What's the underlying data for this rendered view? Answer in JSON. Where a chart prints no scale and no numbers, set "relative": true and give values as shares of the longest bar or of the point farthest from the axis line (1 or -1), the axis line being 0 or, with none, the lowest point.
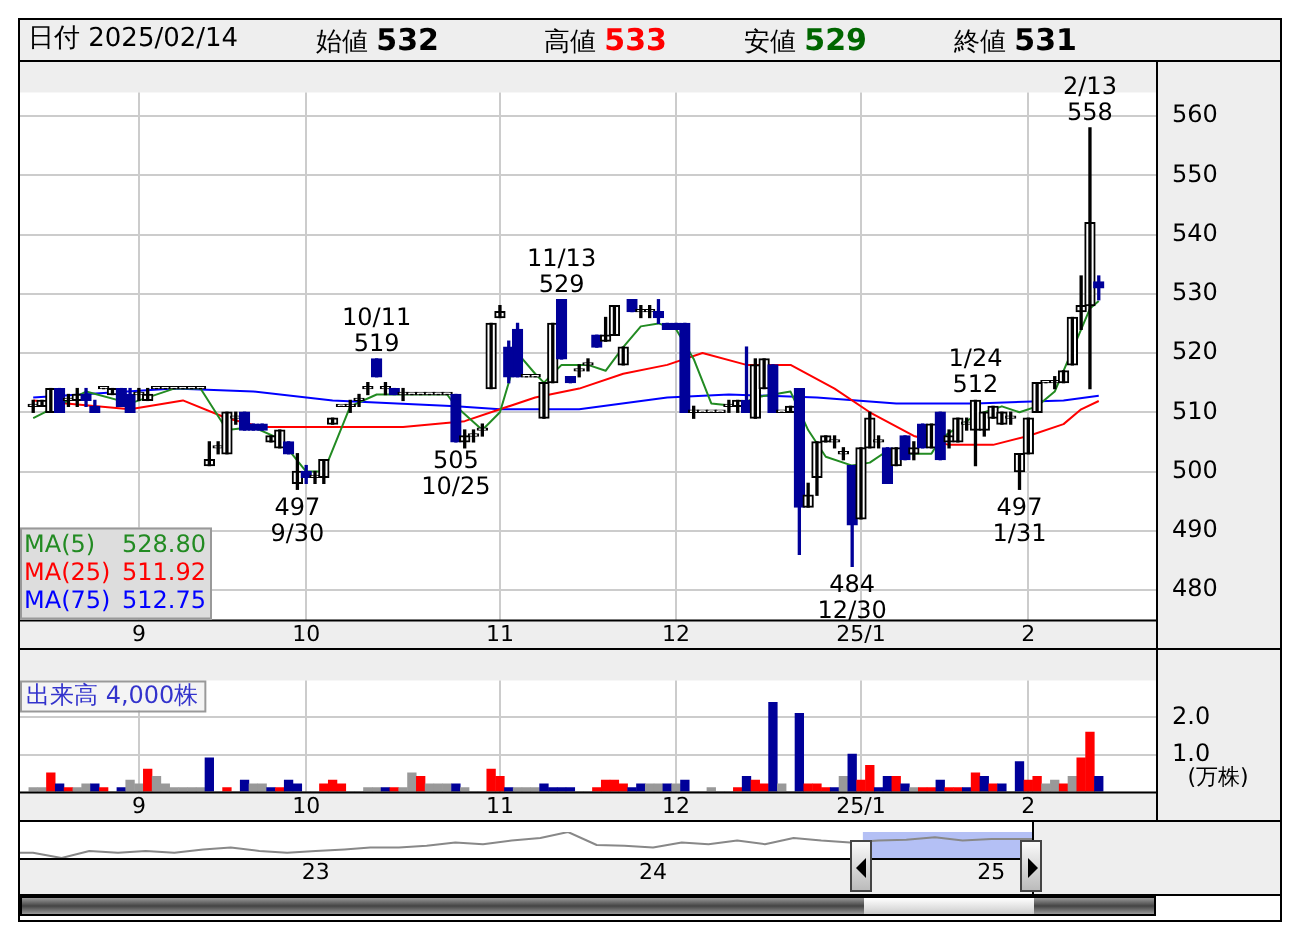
{
  "chart_data": [
    {
      "type": "candlestick",
      "title": "日付 2025/02/14",
      "grid": true,
      "legend": "bottom left",
      "marker": "none",
      "annotations": [
        "始値 532",
        "高値 533",
        "安値 529",
        "終値 531",
        "528.80",
        "511.92",
        "512.75"
      ],
      "categories": [
        null,
        null,
        null,
        null,
        null,
        null,
        null,
        null,
        null,
        null,
        null,
        null,
        "9",
        null,
        null,
        null,
        null,
        null,
        null,
        null,
        null,
        null,
        null,
        null,
        null,
        null,
        null,
        null,
        null,
        null,
        null,
        "10",
        null,
        null,
        null,
        null,
        null,
        null,
        null,
        null,
        null,
        null,
        null,
        null,
        null,
        null,
        null,
        null,
        null,
        null,
        null,
        null,
        null,
        "11",
        null,
        null,
        null,
        null,
        null,
        null,
        null,
        null,
        null,
        null,
        null,
        null,
        null,
        null,
        null,
        null,
        null,
        null,
        null,
        "12",
        null,
        null,
        null,
        null,
        null,
        null,
        null,
        null,
        null,
        null,
        null,
        null,
        null,
        null,
        null,
        null,
        null,
        null,
        null,
        null,
        "25/1",
        null,
        null,
        null,
        null,
        null,
        null,
        null,
        null,
        null,
        null,
        null,
        null,
        null,
        null,
        null,
        null,
        null,
        null,
        "2",
        null,
        null,
        null,
        null,
        null,
        null,
        null,
        null
      ],
      "ylim": [
        475,
        564
      ],
      "yticks": [
        480,
        490,
        500,
        510,
        520,
        530,
        540,
        550,
        560
      ],
      "ohlc": [
        [
          511,
          512,
          510,
          511
        ],
        [
          511,
          512,
          511,
          512
        ],
        [
          510,
          514,
          510,
          514
        ],
        [
          514,
          514,
          510,
          510
        ],
        [
          512,
          513,
          511,
          512
        ],
        [
          512,
          514,
          511,
          513
        ],
        [
          513,
          514,
          511,
          512
        ],
        [
          511,
          512,
          510,
          510
        ],
        [
          514,
          514,
          514,
          514
        ],
        [
          513,
          514,
          513,
          514
        ],
        [
          514,
          514,
          511,
          511
        ],
        [
          513,
          514,
          510,
          510
        ],
        [
          513,
          514,
          512,
          513
        ],
        [
          512,
          514,
          512,
          513
        ],
        [
          514,
          514,
          514,
          514
        ],
        [
          514,
          514,
          514,
          514
        ],
        [
          514,
          514,
          514,
          514
        ],
        [
          514,
          514,
          514,
          514
        ],
        [
          514,
          514,
          514,
          514
        ],
        [
          514,
          514,
          514,
          514
        ],
        [
          501,
          505,
          501,
          502
        ],
        [
          504,
          505,
          503,
          504
        ],
        [
          503,
          510,
          503,
          510
        ],
        [
          509,
          510,
          508,
          509
        ],
        [
          510,
          510,
          507,
          507
        ],
        [
          508,
          508,
          507,
          507
        ],
        [
          508,
          508,
          507,
          507
        ],
        [
          505,
          506,
          505,
          506
        ],
        [
          504,
          507,
          504,
          507
        ],
        [
          505,
          505,
          503,
          503
        ],
        [
          498,
          503,
          497,
          500
        ],
        [
          500,
          501,
          498,
          499
        ],
        [
          499,
          500,
          498,
          499
        ],
        [
          499,
          502,
          498,
          502
        ],
        [
          508,
          509,
          508,
          509
        ],
        [
          511,
          511,
          511,
          511
        ],
        [
          511,
          512,
          510,
          511
        ],
        [
          512,
          513,
          511,
          512
        ],
        [
          514,
          515,
          513,
          514
        ],
        [
          519,
          519,
          516,
          516
        ],
        [
          514,
          515,
          513,
          514
        ],
        [
          514,
          514,
          513,
          513
        ],
        [
          513,
          514,
          512,
          513
        ],
        [
          513,
          513,
          513,
          513
        ],
        [
          513,
          513,
          513,
          513
        ],
        [
          513,
          513,
          513,
          513
        ],
        [
          513,
          513,
          513,
          513
        ],
        [
          513,
          513,
          513,
          513
        ],
        [
          513,
          513,
          505,
          505
        ],
        [
          505,
          507,
          504,
          506
        ],
        [
          506,
          507,
          505,
          506
        ],
        [
          507,
          508,
          506,
          507
        ],
        [
          514,
          525,
          514,
          525
        ],
        [
          526,
          528,
          526,
          527
        ],
        [
          521,
          522,
          515,
          516
        ],
        [
          524,
          525,
          516,
          516
        ],
        [
          516,
          516,
          516,
          516
        ],
        [
          516,
          516,
          516,
          516
        ],
        [
          509,
          515,
          509,
          515
        ],
        [
          515,
          525,
          515,
          525
        ],
        [
          529,
          529,
          519,
          519
        ],
        [
          516,
          516,
          515,
          515
        ],
        [
          517,
          518,
          516,
          517
        ],
        [
          518,
          519,
          517,
          518
        ],
        [
          523,
          523,
          521,
          521
        ],
        [
          522,
          526,
          522,
          523
        ],
        [
          523,
          528,
          523,
          528
        ],
        [
          518,
          521,
          518,
          521
        ],
        [
          529,
          529,
          527,
          527
        ],
        [
          527,
          528,
          526,
          527
        ],
        [
          527,
          528,
          526,
          527
        ],
        [
          527,
          529,
          525,
          526
        ],
        [
          525,
          525,
          524,
          524
        ],
        [
          525,
          525,
          524,
          524
        ],
        [
          525,
          525,
          510,
          510
        ],
        [
          510,
          511,
          509,
          510
        ],
        [
          510,
          510,
          510,
          510
        ],
        [
          510,
          510,
          510,
          510
        ],
        [
          510,
          510,
          510,
          510
        ],
        [
          511,
          512,
          510,
          511
        ],
        [
          511,
          512,
          510,
          512
        ],
        [
          512,
          521,
          510,
          510
        ],
        [
          509,
          519,
          509,
          518
        ],
        [
          514,
          519,
          514,
          519
        ],
        [
          518,
          518,
          510,
          510
        ],
        [
          510,
          510,
          510,
          510
        ],
        [
          510,
          511,
          510,
          511
        ],
        [
          514,
          514,
          486,
          494
        ],
        [
          494,
          498,
          494,
          496
        ],
        [
          499,
          505,
          496,
          505
        ],
        [
          505,
          506,
          505,
          506
        ],
        [
          505,
          506,
          504,
          505
        ],
        [
          503,
          504,
          502,
          503
        ],
        [
          501,
          501,
          484,
          491
        ],
        [
          492,
          504,
          492,
          504
        ],
        [
          504,
          510,
          504,
          509
        ],
        [
          505,
          506,
          504,
          505
        ],
        [
          504,
          504,
          498,
          498
        ],
        [
          501,
          504,
          501,
          504
        ],
        [
          506,
          506,
          502,
          502
        ],
        [
          503,
          505,
          502,
          504
        ],
        [
          508,
          508,
          504,
          504
        ],
        [
          504,
          508,
          504,
          508
        ],
        [
          510,
          510,
          502,
          502
        ],
        [
          505,
          507,
          504,
          506
        ],
        [
          505,
          509,
          505,
          509
        ],
        [
          508,
          509,
          507,
          508
        ],
        [
          507,
          512,
          501,
          512
        ],
        [
          507,
          510,
          506,
          510
        ],
        [
          509,
          511,
          509,
          511
        ],
        [
          508,
          510,
          508,
          510
        ],
        [
          509,
          510,
          508,
          509
        ],
        [
          500,
          503,
          497,
          503
        ],
        [
          503,
          509,
          503,
          509
        ],
        [
          510,
          515,
          510,
          515
        ],
        [
          515,
          515,
          515,
          515
        ],
        [
          515,
          516,
          514,
          515
        ],
        [
          515,
          517,
          515,
          517
        ],
        [
          518,
          526,
          518,
          526
        ],
        [
          527,
          533,
          524,
          528
        ],
        [
          528,
          558,
          514,
          542
        ],
        [
          532,
          533,
          529,
          531
        ]
      ],
      "value_labels": [
        null,
        null,
        null,
        null,
        null,
        null,
        null,
        null,
        null,
        null,
        null,
        null,
        null,
        null,
        null,
        null,
        null,
        null,
        null,
        null,
        null,
        null,
        null,
        null,
        null,
        null,
        null,
        null,
        null,
        null,
        "497\n9/30",
        null,
        null,
        null,
        null,
        null,
        null,
        null,
        null,
        "10/11\n519",
        null,
        null,
        null,
        null,
        null,
        null,
        null,
        null,
        "505\n10/25",
        null,
        null,
        null,
        null,
        null,
        null,
        null,
        null,
        null,
        null,
        null,
        "11/13\n529",
        null,
        null,
        null,
        null,
        null,
        null,
        null,
        null,
        null,
        null,
        null,
        null,
        null,
        null,
        null,
        null,
        null,
        null,
        null,
        null,
        null,
        null,
        null,
        null,
        null,
        null,
        null,
        null,
        null,
        null,
        null,
        null,
        "484\n12/30",
        null,
        null,
        null,
        null,
        null,
        null,
        null,
        null,
        null,
        null,
        null,
        null,
        null,
        "1/24\n512",
        null,
        null,
        null,
        null,
        "497\n1/31",
        null,
        null,
        null,
        null,
        null,
        null,
        null,
        "2/13\n558",
        null
      ],
      "series": [
        {
          "name": "MA(5)",
          "type": "line",
          "color": "#228b22",
          "values": [
            509,
            null,
            null,
            null,
            null,
            null,
            513.5,
            null,
            null,
            null,
            null,
            511.5,
            null,
            null,
            null,
            null,
            514,
            null,
            null,
            514,
            null,
            null,
            507,
            null,
            null,
            507.5,
            null,
            null,
            505.5,
            null,
            null,
            500,
            null,
            500,
            null,
            null,
            511,
            null,
            null,
            513,
            null,
            null,
            null,
            null,
            null,
            null,
            null,
            513,
            511,
            null,
            null,
            507,
            null,
            510,
            null,
            520,
            null,
            516.5,
            515,
            null,
            518,
            null,
            null,
            518,
            null,
            517,
            null,
            521,
            null,
            524.5,
            null,
            525,
            null,
            524,
            null,
            519,
            null,
            511.5,
            null,
            null,
            511,
            null,
            512.5,
            null,
            513,
            null,
            513.5,
            null,
            507,
            null,
            502.5,
            null,
            null,
            501,
            null,
            501.5,
            null,
            503.5,
            null,
            503,
            null,
            null,
            503,
            505.5,
            null,
            null,
            null,
            509.5,
            null,
            null,
            511,
            null,
            510,
            null,
            511,
            null,
            513.5,
            null,
            null,
            null,
            527.5,
            528.8
          ]
        },
        {
          "name": "MA(25)",
          "type": "line",
          "color": "#ff0000",
          "values": [
            512,
            null,
            null,
            null,
            null,
            null,
            null,
            null,
            null,
            null,
            null,
            510.5,
            null,
            null,
            null,
            null,
            null,
            512,
            null,
            null,
            null,
            null,
            509,
            null,
            null,
            null,
            507.5,
            null,
            null,
            null,
            null,
            null,
            null,
            507.5,
            null,
            null,
            null,
            null,
            null,
            null,
            null,
            null,
            507.5,
            null,
            null,
            null,
            null,
            null,
            null,
            508.5,
            null,
            null,
            null,
            510.5,
            null,
            null,
            null,
            512.5,
            null,
            null,
            null,
            null,
            514,
            null,
            null,
            null,
            null,
            516.5,
            null,
            null,
            null,
            null,
            518,
            null,
            null,
            null,
            520,
            null,
            null,
            null,
            null,
            518,
            null,
            null,
            null,
            null,
            518,
            null,
            null,
            null,
            null,
            514,
            null,
            null,
            null,
            510,
            null,
            null,
            null,
            null,
            506,
            null,
            null,
            null,
            504.5,
            null,
            null,
            null,
            null,
            504.5,
            null,
            null,
            null,
            506,
            null,
            null,
            null,
            508,
            null,
            510.5,
            null,
            511.9
          ]
        },
        {
          "name": "MA(75)",
          "type": "line",
          "color": "#0000ff",
          "values": [
            512.5,
            null,
            null,
            null,
            null,
            null,
            null,
            null,
            null,
            null,
            null,
            null,
            null,
            null,
            null,
            null,
            514,
            null,
            null,
            null,
            null,
            null,
            null,
            null,
            null,
            513.5,
            null,
            null,
            null,
            null,
            null,
            null,
            null,
            null,
            512,
            null,
            null,
            null,
            null,
            null,
            null,
            null,
            null,
            null,
            null,
            null,
            null,
            null,
            511,
            null,
            null,
            null,
            null,
            510.5,
            null,
            null,
            null,
            null,
            null,
            null,
            null,
            null,
            510.5,
            null,
            null,
            null,
            null,
            null,
            null,
            null,
            null,
            null,
            512.5,
            null,
            null,
            null,
            null,
            null,
            null,
            513,
            null,
            null,
            null,
            null,
            null,
            null,
            null,
            null,
            null,
            512.5,
            null,
            null,
            null,
            null,
            null,
            null,
            null,
            null,
            511.5,
            null,
            null,
            null,
            null,
            null,
            null,
            null,
            null,
            511.5,
            null,
            null,
            null,
            null,
            null,
            null,
            null,
            null,
            null,
            512,
            null,
            null,
            null,
            512.8
          ]
        }
      ]
    },
    {
      "type": "bar",
      "title": "出来高 4,000株",
      "ylabel": "(万株)",
      "grid": true,
      "categories": [
        null,
        null,
        null,
        null,
        null,
        null,
        null,
        null,
        null,
        null,
        null,
        null,
        "9",
        null,
        null,
        null,
        null,
        null,
        null,
        null,
        null,
        null,
        null,
        null,
        null,
        null,
        null,
        null,
        null,
        null,
        null,
        "10",
        null,
        null,
        null,
        null,
        null,
        null,
        null,
        null,
        null,
        null,
        null,
        null,
        null,
        null,
        null,
        null,
        null,
        null,
        null,
        null,
        null,
        "11",
        null,
        null,
        null,
        null,
        null,
        null,
        null,
        null,
        null,
        null,
        null,
        null,
        null,
        null,
        null,
        null,
        null,
        null,
        null,
        "12",
        null,
        null,
        null,
        null,
        null,
        null,
        null,
        null,
        null,
        null,
        null,
        null,
        null,
        null,
        null,
        null,
        null,
        null,
        null,
        null,
        "25/1",
        null,
        null,
        null,
        null,
        null,
        null,
        null,
        null,
        null,
        null,
        null,
        null,
        null,
        null,
        null,
        null,
        null,
        null,
        "2",
        null,
        null,
        null,
        null,
        null,
        null,
        null,
        null
      ],
      "ylim": [
        0,
        3
      ],
      "yticks": [
        {
          "value": 1,
          "label": "1.0"
        },
        {
          "value": 2,
          "label": "2.0"
        }
      ],
      "values": [
        0.1,
        0.1,
        0.5,
        0.2,
        0.1,
        0.1,
        0.2,
        0.2,
        0.1,
        0,
        0.1,
        0.3,
        0.2,
        0.6,
        0.4,
        0.2,
        0.1,
        0.1,
        0.1,
        0.1,
        0.9,
        0,
        0.1,
        0,
        0.3,
        0.2,
        0.2,
        0.1,
        0.1,
        0.3,
        0.2,
        0,
        0,
        0.2,
        0.3,
        0.2,
        0,
        0,
        0.1,
        0.1,
        0.1,
        0.1,
        0.1,
        0.5,
        0.4,
        0.2,
        0.2,
        0.2,
        0.2,
        0.1,
        0,
        0,
        0.6,
        0.4,
        0.1,
        0.1,
        0.1,
        0.1,
        0.2,
        0.1,
        0.1,
        0.1,
        0,
        0,
        0.1,
        0.3,
        0.3,
        0.2,
        0.1,
        0.2,
        0.2,
        0.2,
        0.2,
        0.2,
        0.3,
        0,
        0,
        0.1,
        0,
        0,
        0.1,
        0.4,
        0.3,
        0.2,
        2.4,
        0.2,
        0,
        2.1,
        0.2,
        0.2,
        0.1,
        0.1,
        0.4,
        1.0,
        0.3,
        0.7,
        0.1,
        0.4,
        0.4,
        0.2,
        0.1,
        0.1,
        0.1,
        0.3,
        0.1,
        0.1,
        0.1,
        0.5,
        0.4,
        0.2,
        0.2,
        0,
        0.8,
        0.3,
        0.4,
        0.2,
        0.3,
        0.2,
        0.4,
        0.9,
        1.6,
        0.4
      ],
      "colors": [
        "#999999",
        "#999999",
        "#ff0000",
        "#000099",
        "#ff0000",
        "#999999",
        "#999999",
        "#000099",
        "#ff0000",
        "#999999",
        "#000099",
        "#999999",
        "#999999",
        "#ff0000",
        "#999999",
        "#999999",
        "#999999",
        "#999999",
        "#999999",
        "#999999",
        "#000099",
        "#999999",
        "#ff0000",
        "#999999",
        "#000099",
        "#999999",
        "#999999",
        "#000099",
        "#ff0000",
        "#000099",
        "#000099",
        "#999999",
        "#999999",
        "#ff0000",
        "#ff0000",
        "#ff0000",
        "#999999",
        "#999999",
        "#999999",
        "#999999",
        "#000099",
        "#ff0000",
        "#999999",
        "#999999",
        "#ff0000",
        "#999999",
        "#999999",
        "#999999",
        "#000099",
        "#999999",
        "#999999",
        "#999999",
        "#ff0000",
        "#ff0000",
        "#000099",
        "#999999",
        "#999999",
        "#999999",
        "#000099",
        "#000099",
        "#000099",
        "#000099",
        "#999999",
        "#999999",
        "#ff0000",
        "#ff0000",
        "#ff0000",
        "#ff0000",
        "#000099",
        "#000099",
        "#999999",
        "#999999",
        "#000099",
        "#999999",
        "#000099",
        "#999999",
        "#999999",
        "#999999",
        "#999999",
        "#999999",
        "#ff0000",
        "#000099",
        "#ff0000",
        "#ff0000",
        "#000099",
        "#999999",
        "#999999",
        "#000099",
        "#ff0000",
        "#ff0000",
        "#ff0000",
        "#000099",
        "#999999",
        "#000099",
        "#ff0000",
        "#ff0000",
        "#000099",
        "#000099",
        "#ff0000",
        "#000099",
        "#999999",
        "#ff0000",
        "#ff0000",
        "#000099",
        "#ff0000",
        "#ff0000",
        "#000099",
        "#ff0000",
        "#000099",
        "#ff0000",
        "#000099",
        "#999999",
        "#000099",
        "#ff0000",
        "#ff0000",
        "#999999",
        "#999999",
        "#ff0000",
        "#999999",
        "#ff0000",
        "#ff0000",
        "#000099"
      ]
    },
    {
      "type": "line",
      "relative": true,
      "tick_labels": "x",
      "color": "#888888",
      "xlim": [
        "2022-02-15",
        "2025-02-14"
      ],
      "xticks": [
        {
          "value": "2023-01-01",
          "label": "23"
        },
        {
          "value": "2024-01-01",
          "label": "24"
        },
        {
          "value": "2025-01-01",
          "label": "25"
        }
      ],
      "bands": [
        {
          "axis": "x",
          "from": "2024-08-15",
          "to": "2025-02-14",
          "color": "#b4c0f5"
        }
      ],
      "x": [
        "2022-02-15",
        "2022-03",
        "2022-04",
        "2022-05",
        "2022-06",
        "2022-07",
        "2022-08",
        "2022-09",
        "2022-10",
        "2022-11",
        "2022-12",
        "2023-01",
        "2023-02",
        "2023-03",
        "2023-04",
        "2023-05",
        "2023-06",
        "2023-07",
        "2023-08",
        "2023-09",
        "2023-10",
        "2023-11",
        "2023-12",
        "2024-01",
        "2024-02",
        "2024-03",
        "2024-04",
        "2024-05",
        "2024-06",
        "2024-07",
        "2024-08",
        "2024-09",
        "2024-10",
        "2024-11",
        "2024-12",
        "2025-01",
        "2025-02-14"
      ],
      "values": [
        0.2,
        0.2,
        0,
        0.27,
        0.2,
        0.27,
        0.2,
        0.33,
        0.4,
        0.27,
        0.2,
        0.27,
        0.33,
        0.4,
        0.4,
        0.47,
        0.6,
        0.53,
        0.67,
        0.77,
        1,
        0.5,
        0.47,
        0.4,
        0.6,
        0.53,
        0.67,
        0.53,
        0.77,
        0.67,
        0.6,
        0.67,
        0.7,
        0.8,
        0.67,
        0.73,
        0.73
      ]
    }
  ]
}
